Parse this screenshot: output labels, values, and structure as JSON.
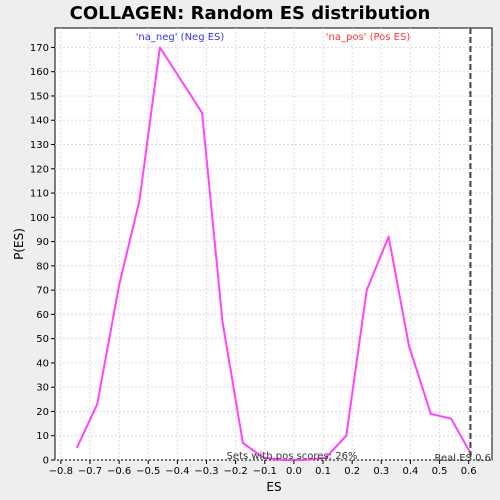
{
  "chart_data": {
    "type": "line",
    "title": "COLLAGEN: Random ES distribution",
    "xlabel": "ES",
    "ylabel": "P(ES)",
    "xlim": [
      -0.82,
      0.68
    ],
    "ylim": [
      0,
      178
    ],
    "x_ticks": [
      -0.8,
      -0.7,
      -0.6,
      -0.5,
      -0.4,
      -0.3,
      -0.2,
      -0.1,
      0.0,
      0.1,
      0.2,
      0.3,
      0.4,
      0.5,
      0.6
    ],
    "x_tick_labels": [
      "−0.8",
      "−0.7",
      "−0.6",
      "−0.5",
      "−0.4",
      "−0.3",
      "−0.2",
      "−0.1",
      "0.0",
      "0.1",
      "0.2",
      "0.3",
      "0.4",
      "0.5",
      "0.6"
    ],
    "y_ticks": [
      0,
      10,
      20,
      30,
      40,
      50,
      60,
      70,
      80,
      90,
      100,
      110,
      120,
      130,
      140,
      150,
      160,
      170
    ],
    "grid": true,
    "series": [
      {
        "color": "#ff44ff",
        "x": [
          -0.745,
          -0.675,
          -0.6,
          -0.53,
          -0.46,
          -0.39,
          -0.315,
          -0.245,
          -0.175,
          -0.105,
          -0.035,
          0.035,
          0.11,
          0.18,
          0.25,
          0.325,
          0.395,
          0.47,
          0.54,
          0.61
        ],
        "y": [
          5,
          23,
          72,
          107,
          170,
          157,
          143,
          57,
          7,
          1,
          0,
          0,
          1,
          10,
          70,
          92,
          47,
          19,
          17,
          2
        ]
      }
    ],
    "real_es": 0.606,
    "legend": [
      {
        "label": "'na_neg' (Neg ES)",
        "color": "#3333ff"
      },
      {
        "label": "'na_pos' (Pos ES)",
        "color": "#ff3333"
      }
    ],
    "annotations": {
      "pos_scores": "Sets with pos scores: 26%",
      "real_es": "Real ES 0.6"
    }
  }
}
